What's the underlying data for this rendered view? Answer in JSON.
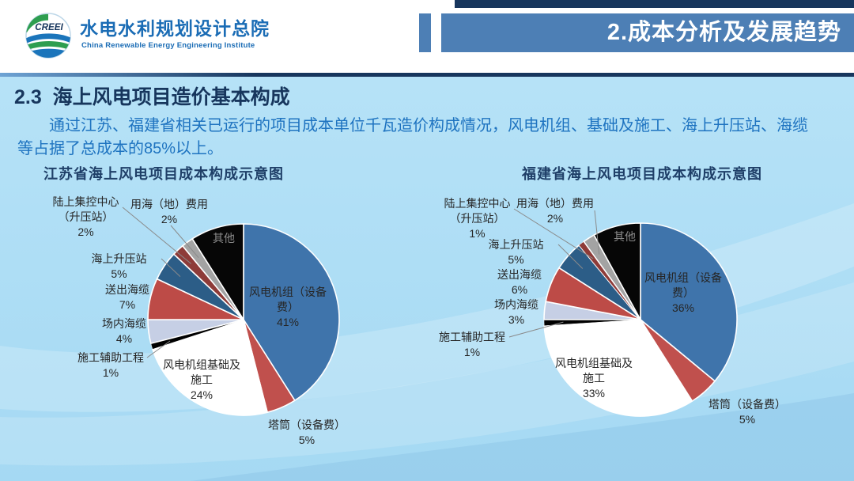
{
  "header": {
    "logo_acronym": "CREEI",
    "org_name_cn": "水电水利规划设计总院",
    "org_name_en": "China Renewable Energy Engineering Institute",
    "banner_title": "2.成本分析及发展趋势"
  },
  "section_title": "2.3  海上风电项目造价基本构成",
  "body_text": "通过江苏、福建省相关已运行的项目成本单位千瓦造价构成情况，风电机组、基础及施工、海上升压站、海缆等占据了总成本的85%以上。",
  "chart_data": [
    {
      "type": "pie",
      "title": "江苏省海上风电项目成本构成示意图",
      "slices": [
        {
          "label": "风电机组（设备费）",
          "value": 41
        },
        {
          "label": "塔筒（设备费）",
          "value": 5
        },
        {
          "label": "风电机组基础及施工",
          "value": 24
        },
        {
          "label": "施工辅助工程",
          "value": 1
        },
        {
          "label": "场内海缆",
          "value": 4
        },
        {
          "label": "送出海缆",
          "value": 7
        },
        {
          "label": "海上升压站",
          "value": 5
        },
        {
          "label": "陆上集控中心（升压站）",
          "value": 2
        },
        {
          "label": "用海（地）费用",
          "value": 2
        },
        {
          "label": "其他",
          "value": 9,
          "pct_shown": false
        }
      ]
    },
    {
      "type": "pie",
      "title": "福建省海上风电项目成本构成示意图",
      "slices": [
        {
          "label": "风电机组（设备费）",
          "value": 36
        },
        {
          "label": "塔筒（设备费）",
          "value": 5
        },
        {
          "label": "风电机组基础及施工",
          "value": 33
        },
        {
          "label": "施工辅助工程",
          "value": 1
        },
        {
          "label": "场内海缆",
          "value": 3
        },
        {
          "label": "送出海缆",
          "value": 6
        },
        {
          "label": "海上升压站",
          "value": 5
        },
        {
          "label": "陆上集控中心（升压站）",
          "value": 1
        },
        {
          "label": "用海（地）费用",
          "value": 2
        },
        {
          "label": "其他",
          "value": 8,
          "pct_shown": false
        }
      ]
    }
  ],
  "palette": {
    "slice_colors": [
      "#3f74ab",
      "#c0504d",
      "#ffffff",
      "#000000",
      "#c6cfe5",
      "#bd4b47",
      "#2c5d87",
      "#8e3b38",
      "#a3a3a3",
      "#060606"
    ],
    "banner_blue": "#4d7fb5",
    "navy": "#17365d",
    "body_text_blue": "#1e73c0",
    "background_blue": "#abddf5",
    "leader_line_gray": "#8a8a8a"
  }
}
